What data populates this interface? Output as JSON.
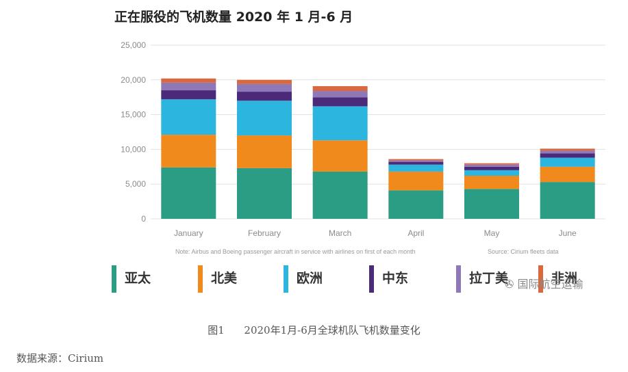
{
  "chart_data": {
    "type": "bar",
    "stacked": true,
    "title": "正在服役的飞机数量 2020 年 1 月-6 月",
    "categories": [
      "January",
      "February",
      "March",
      "April",
      "May",
      "June"
    ],
    "yticks": [
      "0",
      "5,000",
      "10,000",
      "15,000",
      "20,000",
      "25,000"
    ],
    "ylim": [
      0,
      25000
    ],
    "grid": true,
    "legend_placement": "bottom",
    "series": [
      {
        "name": "亚太",
        "color": "#2a9d84",
        "values": [
          7400,
          7300,
          6800,
          4100,
          4300,
          5300
        ]
      },
      {
        "name": "北美",
        "color": "#f08a1c",
        "values": [
          4700,
          4700,
          4500,
          2700,
          1900,
          2200
        ]
      },
      {
        "name": "欧洲",
        "color": "#2bb5df",
        "values": [
          5100,
          5000,
          4900,
          1000,
          800,
          1300
        ]
      },
      {
        "name": "中东",
        "color": "#4b2a7a",
        "values": [
          1300,
          1300,
          1300,
          400,
          500,
          600
        ]
      },
      {
        "name": "拉丁美",
        "color": "#8f78b8",
        "values": [
          1100,
          1100,
          900,
          200,
          300,
          400
        ]
      },
      {
        "name": "非洲",
        "color": "#d9683f",
        "values": [
          600,
          600,
          700,
          200,
          200,
          300
        ]
      }
    ],
    "note": "Note: Airbus and Boeing passenger aircraft in service with airlines on first of each month",
    "source_note": "Source: Cirium fleets data"
  },
  "watermark": "国际航空运输",
  "caption": "图1      2020年1月-6月全球机队飞机数量变化",
  "source": "数据来源：Cirium"
}
